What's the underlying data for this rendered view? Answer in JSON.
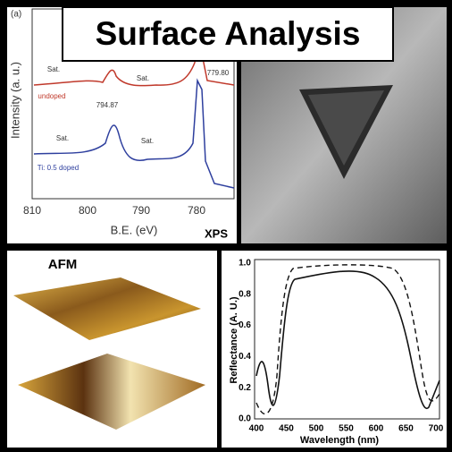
{
  "title": "Surface Analysis",
  "xps": {
    "panel_label": "(a)",
    "y_label": "Intensity (a. u.)",
    "x_label": "B.E. (eV)",
    "tag": "XPS",
    "x_ticks": [
      "810",
      "800",
      "790",
      "780"
    ],
    "annotations": [
      "Sat.",
      "Sat.",
      "undoped",
      "794.87",
      "779.80",
      "Sat.",
      "Sat.",
      "Ti: 0.5 doped"
    ]
  },
  "afm": {
    "label": "AFM"
  },
  "reflectance": {
    "y_label": "Reflectance (A. U.)",
    "x_label": "Wavelength (nm)",
    "y_ticks": [
      "1.0",
      "0.8",
      "0.6",
      "0.4",
      "0.2",
      "0.0"
    ],
    "x_ticks": [
      "400",
      "450",
      "500",
      "550",
      "600",
      "650",
      "700"
    ]
  }
}
